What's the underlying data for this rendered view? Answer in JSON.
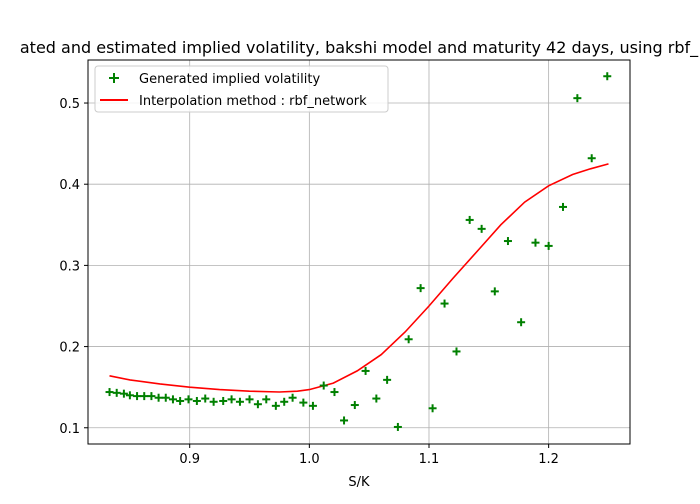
{
  "chart_data": {
    "type": "scatter",
    "title": "ated and estimated implied volatility, bakshi model and maturity 42 days, using rbf_",
    "xlabel": "S/K",
    "ylabel": "",
    "xlim": [
      0.815,
      1.268
    ],
    "ylim": [
      0.08,
      0.553
    ],
    "x_ticks": [
      0.9,
      1.0,
      1.1,
      1.2
    ],
    "x_tick_labels": [
      "0.9",
      "1.0",
      "1.1",
      "1.2"
    ],
    "y_ticks": [
      0.1,
      0.2,
      0.3,
      0.4,
      0.5
    ],
    "y_tick_labels": [
      "0.1",
      "0.2",
      "0.3",
      "0.4",
      "0.5"
    ],
    "grid": true,
    "legend_position": "top-left",
    "colors": {
      "scatter": "#008000",
      "line": "#ff0000"
    },
    "series": [
      {
        "name": "Generated implied volatility",
        "kind": "scatter",
        "marker": "+",
        "x": [
          0.833,
          0.839,
          0.845,
          0.85,
          0.856,
          0.862,
          0.868,
          0.874,
          0.88,
          0.886,
          0.892,
          0.899,
          0.906,
          0.913,
          0.92,
          0.928,
          0.935,
          0.942,
          0.95,
          0.957,
          0.964,
          0.972,
          0.979,
          0.986,
          0.995,
          1.003,
          1.012,
          1.021,
          1.029,
          1.038,
          1.047,
          1.056,
          1.065,
          1.074,
          1.083,
          1.093,
          1.103,
          1.113,
          1.123,
          1.134,
          1.144,
          1.155,
          1.166,
          1.177,
          1.189,
          1.2,
          1.212,
          1.224,
          1.236,
          1.249
        ],
        "y": [
          0.144,
          0.143,
          0.142,
          0.14,
          0.139,
          0.139,
          0.139,
          0.137,
          0.137,
          0.135,
          0.133,
          0.135,
          0.133,
          0.136,
          0.132,
          0.133,
          0.135,
          0.132,
          0.135,
          0.129,
          0.135,
          0.127,
          0.132,
          0.137,
          0.131,
          0.127,
          0.152,
          0.144,
          0.109,
          0.128,
          0.17,
          0.136,
          0.159,
          0.101,
          0.209,
          0.272,
          0.124,
          0.253,
          0.194,
          0.356,
          0.345,
          0.268,
          0.33,
          0.23,
          0.328,
          0.324,
          0.372,
          0.506,
          0.432,
          0.533
        ]
      },
      {
        "name": "Interpolation method : rbf_network",
        "kind": "line",
        "x": [
          0.833,
          0.85,
          0.875,
          0.9,
          0.925,
          0.95,
          0.975,
          0.99,
          1.0,
          1.02,
          1.04,
          1.06,
          1.08,
          1.1,
          1.12,
          1.14,
          1.16,
          1.18,
          1.2,
          1.22,
          1.235,
          1.25
        ],
        "y": [
          0.164,
          0.159,
          0.154,
          0.15,
          0.147,
          0.145,
          0.144,
          0.145,
          0.147,
          0.155,
          0.17,
          0.19,
          0.218,
          0.25,
          0.284,
          0.317,
          0.35,
          0.378,
          0.398,
          0.412,
          0.419,
          0.425
        ]
      }
    ]
  }
}
